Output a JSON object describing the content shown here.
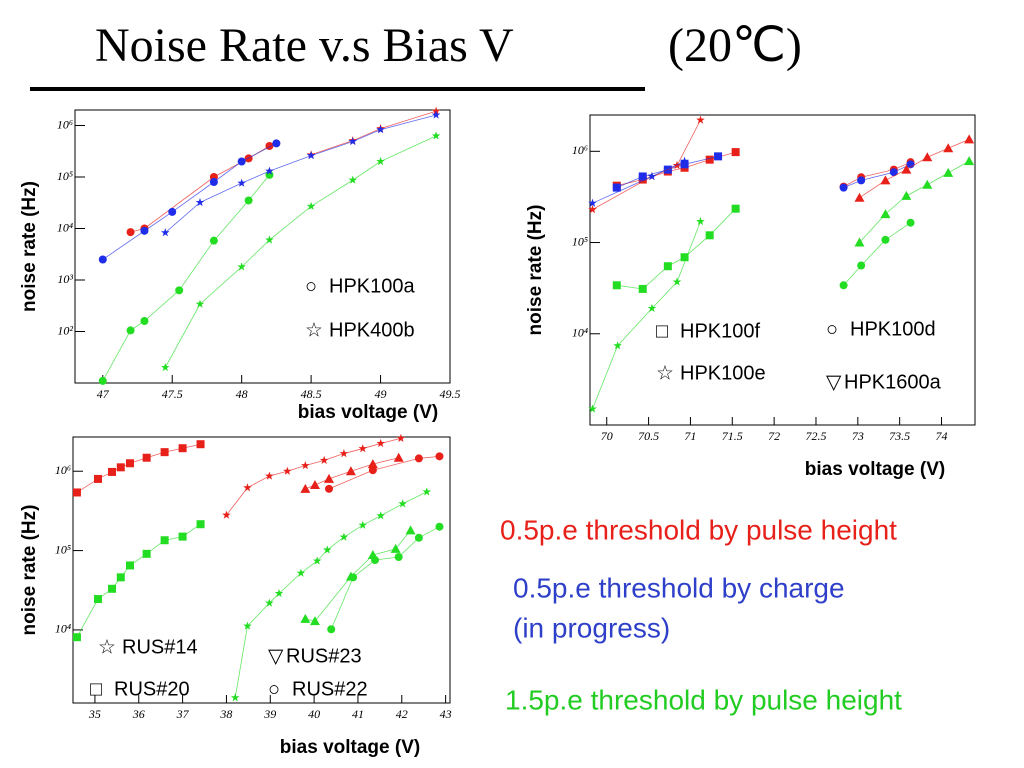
{
  "title": "Noise Rate v.s Bias V",
  "title_suffix": "(20℃)",
  "notes": [
    {
      "text": "0.5p.e threshold by pulse height",
      "color": "#e8201a"
    },
    {
      "text": "0.5p.e threshold by charge",
      "color": "#2e3fc9"
    },
    {
      "text": "(in progress)",
      "color": "#2e3fc9"
    },
    {
      "text": "1.5p.e threshold by pulse height",
      "color": "#22cc22"
    }
  ],
  "chart_data": [
    {
      "type": "line",
      "xlabel": "bias voltage (V)",
      "ylabel": "noise rate (Hz)",
      "log_y": true,
      "xlim": [
        46.8,
        49.5
      ],
      "ylim": [
        10,
        2000000
      ],
      "xticks": [
        47,
        47.5,
        48,
        48.5,
        49,
        49.5
      ],
      "yticks": [
        {
          "value": 100,
          "label": "10²"
        },
        {
          "value": 1000,
          "label": "10³"
        },
        {
          "value": 10000,
          "label": "10⁴"
        },
        {
          "value": 100000,
          "label": "10⁵"
        },
        {
          "value": 1000000,
          "label": "10⁶"
        }
      ],
      "devices": [
        {
          "name": "HPK100a",
          "symbol": "○",
          "marker": "circle",
          "series": [
            {
              "color": "#e8201a",
              "x": [
                47.2,
                47.3,
                47.8,
                48.05,
                48.2
              ],
              "values": [
                8500,
                10000,
                100000,
                230000,
                400000
              ]
            },
            {
              "color": "#1f2de8",
              "x": [
                47,
                47.3,
                47.5,
                47.8,
                48,
                48.25
              ],
              "values": [
                2500,
                9000,
                21000,
                80000,
                200000,
                450000
              ]
            },
            {
              "color": "#22dd22",
              "x": [
                47,
                47.2,
                47.3,
                47.55,
                47.8,
                48.05,
                48.2
              ],
              "values": [
                11,
                105,
                160,
                630,
                5800,
                35000,
                110000
              ]
            }
          ]
        },
        {
          "name": "HPK400b",
          "symbol": "☆",
          "marker": "star",
          "series": [
            {
              "color": "#e8201a",
              "x": [
                48.5,
                48.8,
                49,
                49.4
              ],
              "values": [
                270000,
                510000,
                870000,
                1900000
              ]
            },
            {
              "color": "#1f2de8",
              "x": [
                47.45,
                47.7,
                48,
                48.2,
                48.5,
                48.8,
                49,
                49.4
              ],
              "values": [
                8300,
                32000,
                76000,
                130000,
                260000,
                490000,
                830000,
                1600000
              ]
            },
            {
              "color": "#22dd22",
              "x": [
                47.45,
                47.7,
                48,
                48.2,
                48.5,
                48.8,
                49,
                49.4
              ],
              "values": [
                20,
                340,
                1800,
                6000,
                27000,
                87000,
                200000,
                630000
              ]
            }
          ]
        }
      ]
    },
    {
      "type": "line",
      "xlabel": "bias voltage (V)",
      "ylabel": "noise rate (Hz)",
      "log_y": true,
      "xlim": [
        69.8,
        74.4
      ],
      "ylim": [
        1000,
        2500000
      ],
      "xticks": [
        70,
        70.5,
        71,
        71.5,
        72,
        72.5,
        73,
        73.5,
        74
      ],
      "yticks": [
        {
          "value": 10000,
          "label": "10⁴"
        },
        {
          "value": 100000,
          "label": "10⁵"
        },
        {
          "value": 1000000,
          "label": "10⁶"
        }
      ],
      "devices": [
        {
          "name": "HPK100f",
          "symbol": "□",
          "marker": "square",
          "series": [
            {
              "color": "#e8201a",
              "x": [
                70.12,
                70.43,
                70.73,
                70.93,
                71.23,
                71.54
              ],
              "values": [
                420000,
                490000,
                600000,
                660000,
                810000,
                980000
              ]
            },
            {
              "color": "#1f2de8",
              "x": [
                70.12,
                70.43,
                70.73,
                70.93,
                71.33
              ],
              "values": [
                400000,
                530000,
                630000,
                720000,
                880000
              ]
            },
            {
              "color": "#22dd22",
              "x": [
                70.12,
                70.43,
                70.73,
                70.93,
                71.23,
                71.54
              ],
              "values": [
                34000,
                31000,
                55000,
                69000,
                120000,
                235000
              ]
            }
          ]
        },
        {
          "name": "HPK100d",
          "symbol": "○",
          "marker": "circle",
          "series": [
            {
              "color": "#e8201a",
              "x": [
                72.83,
                73.04,
                73.43,
                73.63
              ],
              "values": [
                410000,
                520000,
                630000,
                760000
              ]
            },
            {
              "color": "#1f2de8",
              "x": [
                72.83,
                73.04,
                73.43,
                73.63
              ],
              "values": [
                400000,
                480000,
                590000,
                720000
              ]
            },
            {
              "color": "#22dd22",
              "x": [
                72.83,
                73.04,
                73.33,
                73.63
              ],
              "values": [
                34000,
                56000,
                107000,
                165000
              ]
            }
          ]
        },
        {
          "name": "HPK100e",
          "symbol": "☆",
          "marker": "star",
          "series": [
            {
              "color": "#e8201a",
              "x": [
                69.83,
                70.54,
                70.84,
                71.12
              ],
              "values": [
                230000,
                530000,
                700000,
                2200000
              ]
            },
            {
              "color": "#1f2de8",
              "x": [
                69.83,
                70.54,
                70.93
              ],
              "values": [
                270000,
                530000,
                780000
              ]
            },
            {
              "color": "#22dd22",
              "x": [
                69.83,
                70.13,
                70.54,
                70.84,
                71.12
              ],
              "values": [
                1500,
                7400,
                19000,
                37000,
                170000
              ]
            }
          ]
        },
        {
          "name": "HPK1600a",
          "symbol": "▽",
          "marker": "triangle",
          "series": [
            {
              "color": "#e8201a",
              "x": [
                73.02,
                73.33,
                73.58,
                73.83,
                74.08,
                74.33
              ],
              "values": [
                310000,
                480000,
                630000,
                860000,
                1080000,
                1350000
              ]
            },
            {
              "color": "#22dd22",
              "x": [
                73.02,
                73.33,
                73.58,
                73.83,
                74.08,
                74.33
              ],
              "values": [
                100000,
                205000,
                325000,
                430000,
                580000,
                780000
              ]
            }
          ]
        }
      ]
    },
    {
      "type": "line",
      "xlabel": "bias voltage (V)",
      "ylabel": "noise rate (Hz)",
      "log_y": true,
      "xlim": [
        34.5,
        43.1
      ],
      "ylim": [
        1200,
        2700000
      ],
      "xticks": [
        35,
        36,
        37,
        38,
        39,
        40,
        41,
        42,
        43
      ],
      "yticks": [
        {
          "value": 10000,
          "label": "10⁴"
        },
        {
          "value": 100000,
          "label": "10⁵"
        },
        {
          "value": 1000000,
          "label": "10⁶"
        }
      ],
      "devices": [
        {
          "name": "RUS#14",
          "symbol": "☆",
          "marker": "star",
          "series": [
            {
              "color": "#e8201a",
              "x": [
                38,
                38.48,
                38.98,
                39.39,
                39.8,
                40.23,
                40.68,
                41.11,
                41.52,
                41.98
              ],
              "values": [
                280000,
                620000,
                870000,
                1000000,
                1180000,
                1370000,
                1670000,
                1930000,
                2240000,
                2600000
              ]
            },
            {
              "color": "#22dd22",
              "x": [
                38.2,
                38.48,
                38.98,
                39.2,
                39.7,
                40.07,
                40.3,
                40.68,
                41.11,
                41.52,
                42.02,
                42.57
              ],
              "values": [
                1400,
                11200,
                21800,
                28800,
                52000,
                74000,
                102000,
                148000,
                209000,
                275000,
                389000,
                550000
              ]
            }
          ]
        },
        {
          "name": "RUS#20",
          "symbol": "□",
          "marker": "square",
          "series": [
            {
              "color": "#e8201a",
              "x": [
                34.59,
                35.07,
                35.39,
                35.59,
                35.8,
                36.18,
                36.59,
                37,
                37.41
              ],
              "values": [
                540000,
                800000,
                980000,
                1120000,
                1260000,
                1480000,
                1740000,
                1950000,
                2190000
              ]
            },
            {
              "color": "#22dd22",
              "x": [
                34.59,
                35.07,
                35.39,
                35.59,
                35.8,
                36.18,
                36.59,
                37,
                37.41
              ],
              "values": [
                8100,
                24500,
                33000,
                46000,
                65000,
                91000,
                135000,
                150000,
                215000
              ]
            }
          ]
        },
        {
          "name": "RUS#23",
          "symbol": "▽",
          "marker": "triangle",
          "series": [
            {
              "color": "#e8201a",
              "x": [
                39.8,
                40.02,
                40.34,
                40.84,
                41.34,
                41.93
              ],
              "values": [
                600000,
                670000,
                800000,
                1000000,
                1230000,
                1480000
              ]
            },
            {
              "color": "#22dd22",
              "x": [
                39.8,
                40.02,
                40.84,
                41.34,
                41.86,
                42.2
              ],
              "values": [
                13800,
                12900,
                47000,
                88000,
                105000,
                180000
              ]
            }
          ]
        },
        {
          "name": "RUS#22",
          "symbol": "○",
          "marker": "circle",
          "series": [
            {
              "color": "#e8201a",
              "x": [
                40.34,
                41.34,
                42.39,
                42.86
              ],
              "values": [
                600000,
                1030000,
                1450000,
                1540000
              ]
            },
            {
              "color": "#22dd22",
              "x": [
                40.39,
                40.89,
                41.39,
                41.93,
                42.39,
                42.86
              ],
              "values": [
                10200,
                46000,
                76000,
                83000,
                145000,
                200000
              ]
            }
          ]
        }
      ]
    }
  ]
}
